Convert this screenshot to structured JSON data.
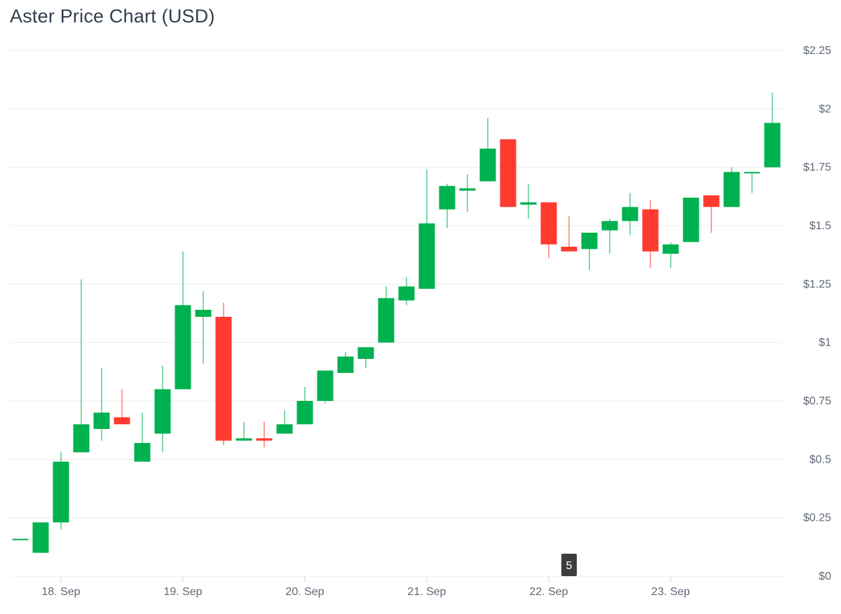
{
  "chart_data": {
    "type": "candlestick",
    "title": "Aster Price Chart (USD)",
    "y_axis": {
      "min": 0,
      "max": 2.25,
      "ticks": [
        0,
        0.25,
        0.5,
        0.75,
        1,
        1.25,
        1.5,
        1.75,
        2,
        2.25
      ],
      "tick_labels": [
        "$0",
        "$0.25",
        "$0.5",
        "$0.75",
        "$1",
        "$1.25",
        "$1.5",
        "$1.75",
        "$2",
        "$2.25"
      ],
      "position": "right"
    },
    "x_axis": {
      "labels": [
        "18. Sep",
        "19. Sep",
        "20. Sep",
        "21. Sep",
        "22. Sep",
        "23. Sep"
      ],
      "label_candle_index": [
        2,
        8,
        14,
        20,
        26,
        32
      ]
    },
    "grid": true,
    "colors": {
      "up": "#00b14f",
      "down": "#ff3b30"
    },
    "candles": [
      {
        "open": 0.16,
        "high": 0.16,
        "low": 0.16,
        "close": 0.16
      },
      {
        "open": 0.1,
        "high": 0.23,
        "low": 0.1,
        "close": 0.23
      },
      {
        "open": 0.23,
        "high": 0.53,
        "low": 0.2,
        "close": 0.49
      },
      {
        "open": 0.53,
        "high": 1.27,
        "low": 0.53,
        "close": 0.65
      },
      {
        "open": 0.63,
        "high": 0.89,
        "low": 0.58,
        "close": 0.7
      },
      {
        "open": 0.68,
        "high": 0.8,
        "low": 0.65,
        "close": 0.65
      },
      {
        "open": 0.49,
        "high": 0.7,
        "low": 0.49,
        "close": 0.57
      },
      {
        "open": 0.61,
        "high": 0.9,
        "low": 0.53,
        "close": 0.8
      },
      {
        "open": 0.8,
        "high": 1.39,
        "low": 0.8,
        "close": 1.16
      },
      {
        "open": 1.11,
        "high": 1.22,
        "low": 0.91,
        "close": 1.14
      },
      {
        "open": 1.11,
        "high": 1.17,
        "low": 0.56,
        "close": 0.58
      },
      {
        "open": 0.58,
        "high": 0.66,
        "low": 0.58,
        "close": 0.59
      },
      {
        "open": 0.59,
        "high": 0.66,
        "low": 0.55,
        "close": 0.58
      },
      {
        "open": 0.61,
        "high": 0.71,
        "low": 0.61,
        "close": 0.65
      },
      {
        "open": 0.65,
        "high": 0.81,
        "low": 0.65,
        "close": 0.75
      },
      {
        "open": 0.75,
        "high": 0.88,
        "low": 0.74,
        "close": 0.88
      },
      {
        "open": 0.87,
        "high": 0.96,
        "low": 0.87,
        "close": 0.94
      },
      {
        "open": 0.93,
        "high": 0.98,
        "low": 0.89,
        "close": 0.98
      },
      {
        "open": 1.0,
        "high": 1.24,
        "low": 1.0,
        "close": 1.19
      },
      {
        "open": 1.18,
        "high": 1.28,
        "low": 1.16,
        "close": 1.24
      },
      {
        "open": 1.23,
        "high": 1.74,
        "low": 1.23,
        "close": 1.51
      },
      {
        "open": 1.57,
        "high": 1.68,
        "low": 1.49,
        "close": 1.67
      },
      {
        "open": 1.65,
        "high": 1.72,
        "low": 1.56,
        "close": 1.66
      },
      {
        "open": 1.69,
        "high": 1.96,
        "low": 1.69,
        "close": 1.83
      },
      {
        "open": 1.87,
        "high": 1.87,
        "low": 1.58,
        "close": 1.58
      },
      {
        "open": 1.59,
        "high": 1.68,
        "low": 1.53,
        "close": 1.6
      },
      {
        "open": 1.6,
        "high": 1.6,
        "low": 1.36,
        "close": 1.42
      },
      {
        "open": 1.41,
        "high": 1.54,
        "low": 1.39,
        "close": 1.39
      },
      {
        "open": 1.4,
        "high": 1.47,
        "low": 1.31,
        "close": 1.47
      },
      {
        "open": 1.48,
        "high": 1.53,
        "low": 1.38,
        "close": 1.52
      },
      {
        "open": 1.52,
        "high": 1.64,
        "low": 1.46,
        "close": 1.58
      },
      {
        "open": 1.57,
        "high": 1.61,
        "low": 1.32,
        "close": 1.39
      },
      {
        "open": 1.38,
        "high": 1.43,
        "low": 1.32,
        "close": 1.42
      },
      {
        "open": 1.43,
        "high": 1.62,
        "low": 1.43,
        "close": 1.62
      },
      {
        "open": 1.63,
        "high": 1.63,
        "low": 1.47,
        "close": 1.58
      },
      {
        "open": 1.58,
        "high": 1.75,
        "low": 1.58,
        "close": 1.73
      },
      {
        "open": 1.73,
        "high": 1.73,
        "low": 1.64,
        "close": 1.73
      },
      {
        "open": 1.75,
        "high": 2.07,
        "low": 1.75,
        "close": 1.94
      }
    ],
    "marker": {
      "label": "5",
      "candle_index": 27
    }
  }
}
